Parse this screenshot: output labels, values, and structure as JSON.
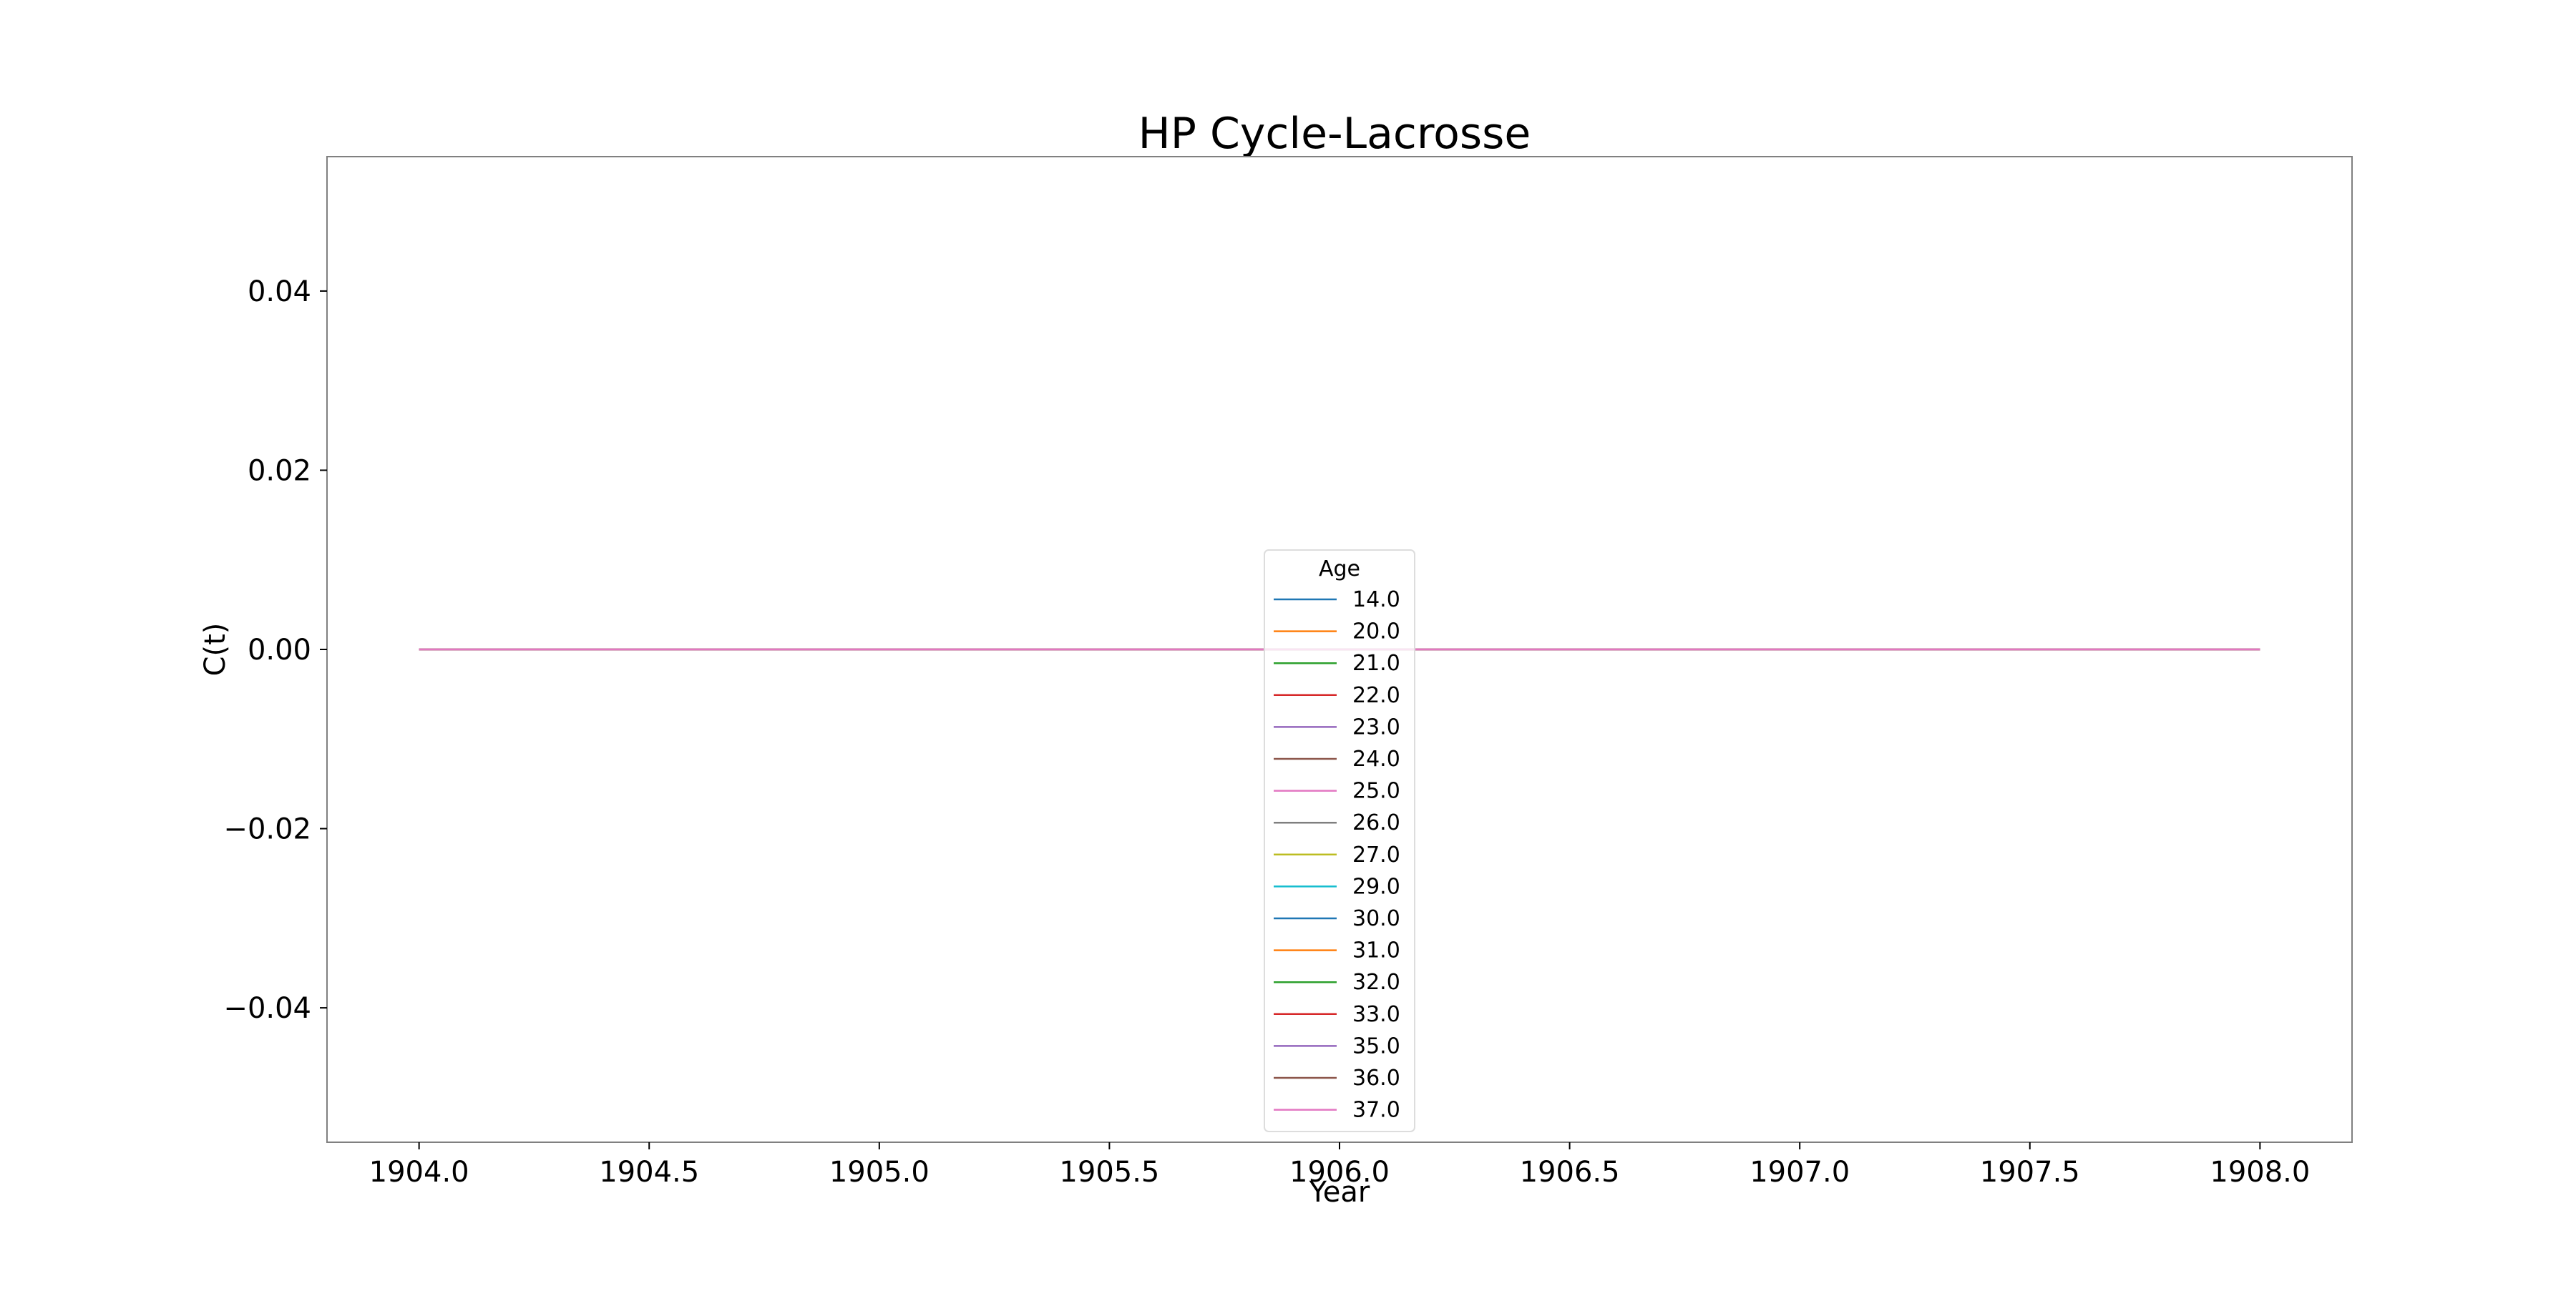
{
  "chart_data": {
    "type": "line",
    "title": "HP Cycle-Lacrosse",
    "xlabel": "Year",
    "ylabel": "C(t)",
    "xlim": [
      1903.8,
      1908.2
    ],
    "ylim": [
      -0.055,
      0.055
    ],
    "x_ticks": [
      1904.0,
      1904.5,
      1905.0,
      1905.5,
      1906.0,
      1906.5,
      1907.0,
      1907.5,
      1908.0
    ],
    "x_tick_labels": [
      "1904.0",
      "1904.5",
      "1905.0",
      "1905.5",
      "1906.0",
      "1906.5",
      "1907.0",
      "1907.5",
      "1908.0"
    ],
    "y_ticks": [
      0.04,
      0.02,
      0.0,
      -0.02,
      -0.04
    ],
    "y_tick_labels": [
      "0.04",
      "0.02",
      "0.00",
      "−0.02",
      "−0.04"
    ],
    "grid": false,
    "legend": {
      "title": "Age",
      "placement": "lower-center"
    },
    "x": [
      1904.0,
      1908.0
    ],
    "series": [
      {
        "name": "14.0",
        "color": "#1f77b4",
        "values": [
          0.0,
          0.0
        ]
      },
      {
        "name": "20.0",
        "color": "#ff7f0e",
        "values": [
          0.0,
          0.0
        ]
      },
      {
        "name": "21.0",
        "color": "#2ca02c",
        "values": [
          0.0,
          0.0
        ]
      },
      {
        "name": "22.0",
        "color": "#d62728",
        "values": [
          0.0,
          0.0
        ]
      },
      {
        "name": "23.0",
        "color": "#9467bd",
        "values": [
          0.0,
          0.0
        ]
      },
      {
        "name": "24.0",
        "color": "#8c564b",
        "values": [
          0.0,
          0.0
        ]
      },
      {
        "name": "25.0",
        "color": "#e377c2",
        "values": [
          0.0,
          0.0
        ]
      },
      {
        "name": "26.0",
        "color": "#7f7f7f",
        "values": [
          0.0,
          0.0
        ]
      },
      {
        "name": "27.0",
        "color": "#bcbd22",
        "values": [
          0.0,
          0.0
        ]
      },
      {
        "name": "29.0",
        "color": "#17becf",
        "values": [
          0.0,
          0.0
        ]
      },
      {
        "name": "30.0",
        "color": "#1f77b4",
        "values": [
          0.0,
          0.0
        ]
      },
      {
        "name": "31.0",
        "color": "#ff7f0e",
        "values": [
          0.0,
          0.0
        ]
      },
      {
        "name": "32.0",
        "color": "#2ca02c",
        "values": [
          0.0,
          0.0
        ]
      },
      {
        "name": "33.0",
        "color": "#d62728",
        "values": [
          0.0,
          0.0
        ]
      },
      {
        "name": "35.0",
        "color": "#9467bd",
        "values": [
          0.0,
          0.0
        ]
      },
      {
        "name": "36.0",
        "color": "#8c564b",
        "values": [
          0.0,
          0.0
        ]
      },
      {
        "name": "37.0",
        "color": "#e377c2",
        "values": [
          0.0,
          0.0
        ]
      }
    ]
  }
}
